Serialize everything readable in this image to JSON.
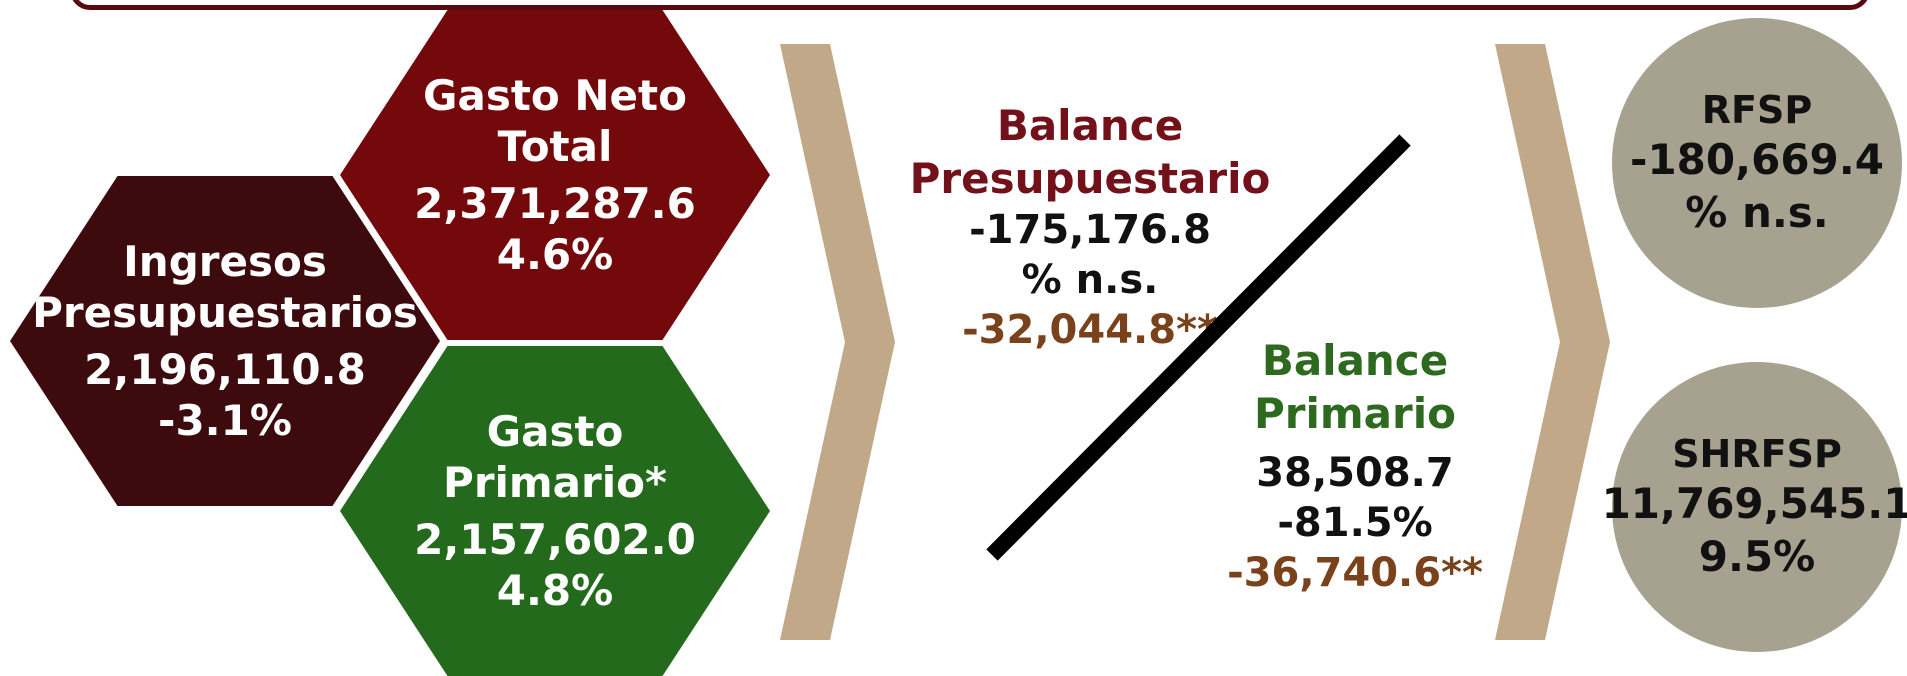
{
  "colors": {
    "ingresos": "#3d0b0e",
    "gasto_neto": "#74090c",
    "gasto_primario": "#236a1c",
    "chevron": "#c1a888",
    "circle": "#a7a290",
    "balance_presupuestario": "#73111b",
    "balance_primario": "#2d6a1f",
    "adjusted_value": "#7a421b"
  },
  "ingresos": {
    "title_1": "Ingresos",
    "title_2": "Presupuestarios",
    "value": "2,196,110.8",
    "change": "-3.1%"
  },
  "gasto_neto": {
    "title_1": "Gasto Neto",
    "title_2": "Total",
    "value": "2,371,287.6",
    "change": "4.6%"
  },
  "gasto_primario": {
    "title_1": "Gasto",
    "title_2": "Primario*",
    "value": "2,157,602.0",
    "change": "4.8%"
  },
  "balance_presupuestario": {
    "title_1": "Balance",
    "title_2": "Presupuestario",
    "value": "-175,176.8",
    "change": "% n.s.",
    "adjusted": "-32,044.8**"
  },
  "balance_primario": {
    "title_1": "Balance",
    "title_2": "Primario",
    "value": "38,508.7",
    "change": "-81.5%",
    "adjusted": "-36,740.6**"
  },
  "rfsp": {
    "title": "RFSP",
    "value": "-180,669.4",
    "change": "% n.s."
  },
  "shrfsp": {
    "title": "SHRFSP",
    "value": "11,769,545.1",
    "change": "9.5%"
  }
}
